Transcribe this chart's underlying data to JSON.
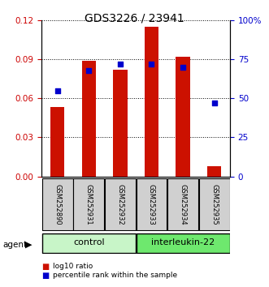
{
  "title": "GDS3226 / 23941",
  "samples": [
    "GSM252890",
    "GSM252931",
    "GSM252932",
    "GSM252933",
    "GSM252934",
    "GSM252935"
  ],
  "log10_ratio": [
    0.053,
    0.089,
    0.082,
    0.115,
    0.092,
    0.008
  ],
  "percentile_rank": [
    55,
    68,
    72,
    72,
    70,
    47
  ],
  "groups": [
    {
      "label": "control",
      "start": 0,
      "end": 3,
      "color": "#c8f5c8"
    },
    {
      "label": "interleukin-22",
      "start": 3,
      "end": 6,
      "color": "#6ee86e"
    }
  ],
  "agent_label": "agent",
  "left_yticks": [
    0,
    0.03,
    0.06,
    0.09,
    0.12
  ],
  "right_yticks": [
    0,
    25,
    50,
    75,
    100
  ],
  "left_ylabel_color": "#cc0000",
  "right_ylabel_color": "#0000cc",
  "bar_color": "#cc1100",
  "dot_color": "#0000cc",
  "bar_width": 0.45,
  "dot_size": 22,
  "legend_bar_label": "log10 ratio",
  "legend_dot_label": "percentile rank within the sample",
  "sample_box_color": "#d0d0d0"
}
